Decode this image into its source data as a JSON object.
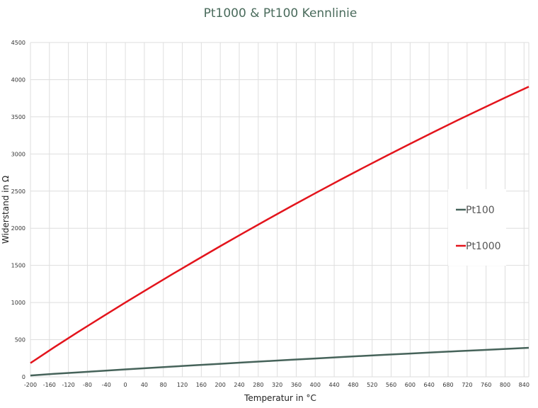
{
  "chart_data": {
    "type": "line",
    "title": "Pt1000 & Pt100 Kennlinie",
    "xlabel": "Temperatur in °C",
    "ylabel": "Widerstand in Ω",
    "xlim": [
      -200,
      850
    ],
    "ylim": [
      0,
      4500
    ],
    "xticks": [
      -200,
      -160,
      -120,
      -80,
      -40,
      0,
      40,
      80,
      120,
      160,
      200,
      240,
      280,
      320,
      360,
      400,
      440,
      480,
      520,
      560,
      600,
      640,
      680,
      720,
      760,
      800,
      840
    ],
    "yticks": [
      0,
      500,
      1000,
      1500,
      2000,
      2500,
      3000,
      3500,
      4000,
      4500
    ],
    "grid": true,
    "legend_position": "right",
    "x": [
      -200,
      -150,
      -100,
      -50,
      0,
      50,
      100,
      150,
      200,
      250,
      300,
      350,
      400,
      450,
      500,
      550,
      600,
      650,
      700,
      750,
      800,
      850
    ],
    "series": [
      {
        "name": "Pt100",
        "color": "#46635a",
        "values": [
          18.52,
          39.72,
          60.26,
          80.31,
          100,
          119.4,
          138.51,
          157.33,
          175.86,
          194.1,
          212.05,
          229.72,
          247.09,
          264.18,
          280.98,
          297.49,
          313.71,
          329.64,
          345.28,
          360.64,
          375.7,
          390.48
        ]
      },
      {
        "name": "Pt1000",
        "color": "#e3141c",
        "values": [
          185.2,
          397.2,
          602.6,
          803.1,
          1000,
          1194.0,
          1385.1,
          1573.3,
          1758.6,
          1941.0,
          2120.5,
          2297.2,
          2470.9,
          2641.8,
          2809.8,
          2974.9,
          3137.1,
          3296.4,
          3452.8,
          3606.4,
          3757.0,
          3904.8
        ]
      }
    ]
  }
}
